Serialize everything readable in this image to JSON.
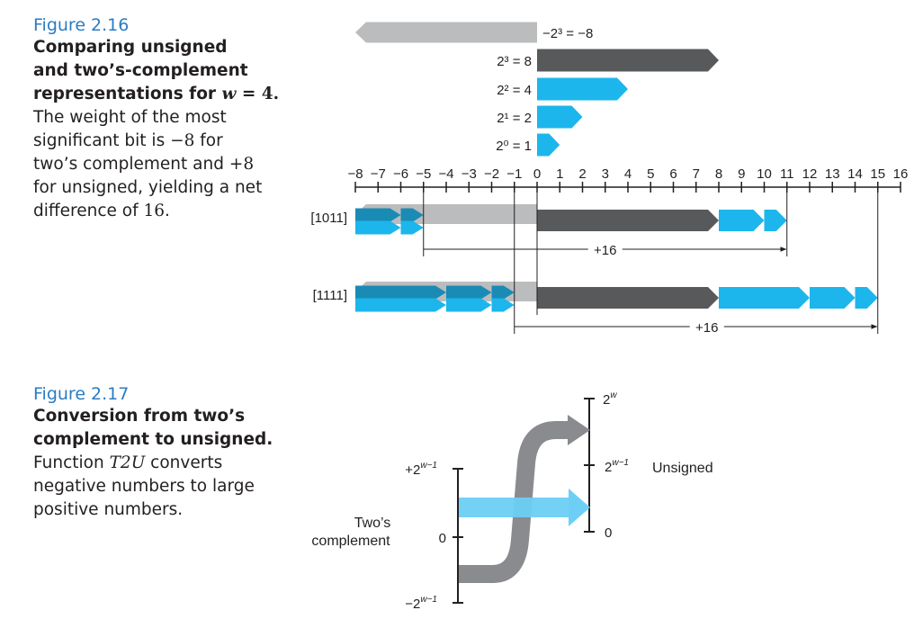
{
  "fig216": {
    "label": "Figure 2.16",
    "title_a": "Comparing unsigned",
    "title_b": "and two’s-complement",
    "title_c": "representations for ",
    "title_var": "w",
    "title_eq": " = 4.",
    "body_a": "The weight of the most",
    "body_b1": "significant bit is ",
    "body_b2": "−8",
    "body_b3": " for",
    "body_c1": "two’s complement and ",
    "body_c2": "+8",
    "body_d": "for unsigned, yielding a net",
    "body_e1": "difference of ",
    "body_e2": "16",
    "body_e3": ".",
    "weights": [
      {
        "text": "−2³ = −8",
        "from": 0,
        "to": -8,
        "color": "#bbbcbe"
      },
      {
        "text": "2³ = 8",
        "from": 0,
        "to": 8,
        "color": "#58595b"
      },
      {
        "text": "2² = 4",
        "from": 0,
        "to": 4,
        "color": "#1cb6ec"
      },
      {
        "text": "2¹ = 2",
        "from": 0,
        "to": 2,
        "color": "#1cb6ec"
      },
      {
        "text": "2⁰ = 1",
        "from": 0,
        "to": 1,
        "color": "#1cb6ec"
      }
    ],
    "axis_min": -8,
    "axis_max": 16,
    "tick_labels": [
      "−8",
      "−7",
      "−6",
      "−5",
      "−4",
      "−3",
      "−2",
      "−1",
      "0",
      "1",
      "2",
      "3",
      "4",
      "5",
      "6",
      "7",
      "8",
      "9",
      "10",
      "11",
      "12",
      "13",
      "14",
      "15",
      "16"
    ],
    "patterns": [
      {
        "label": "[1011]",
        "twos": -5,
        "unsigned": 11,
        "bits": [
          8,
          2,
          1
        ],
        "diff": "+16"
      },
      {
        "label": "[1111]",
        "twos": -1,
        "unsigned": 15,
        "bits": [
          8,
          4,
          2,
          1
        ],
        "diff": "+16"
      }
    ],
    "colors": {
      "neg": "#bbbcbe",
      "pos": "#58595b",
      "bit": "#1cb6ec",
      "dark_bit": "#1a8bb4"
    }
  },
  "fig217": {
    "label": "Figure 2.17",
    "title_a": "Conversion from two’s",
    "title_b": "complement to unsigned.",
    "body_a1": "Function ",
    "body_a2": "T2U",
    "body_a3": " converts",
    "body_b": "negative numbers to large",
    "body_c": "positive numbers.",
    "left_top": "+2",
    "left_top_sup": "w−1",
    "left_zero": "0",
    "left_bottom": "−2",
    "left_bottom_sup": "w−1",
    "left_title_a": "Two’s",
    "left_title_b": "complement",
    "right_top": "2",
    "right_top_sup": "w",
    "right_mid": "2",
    "right_mid_sup": "w−1",
    "right_zero": "0",
    "right_title": "Unsigned",
    "colors": {
      "gray": "#8a8b8e",
      "blue": "#6dcff6"
    }
  }
}
